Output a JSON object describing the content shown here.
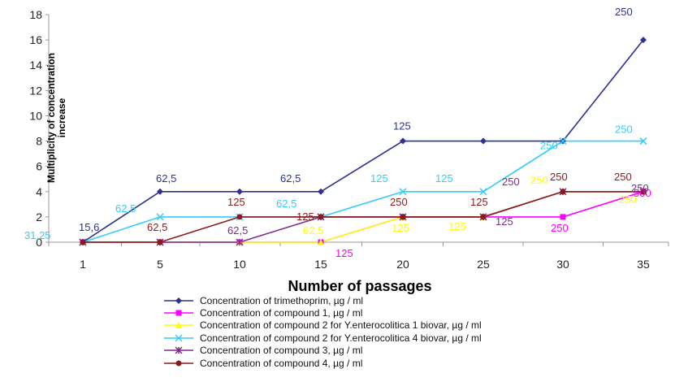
{
  "chart_data": {
    "type": "line",
    "categories": [
      "1",
      "5",
      "10",
      "15",
      "20",
      "25",
      "30",
      "35"
    ],
    "ylim": [
      0,
      18
    ],
    "yticks": [
      "0",
      "2",
      "4",
      "6",
      "8",
      "10",
      "12",
      "14",
      "16",
      "18"
    ],
    "xlabel": "Number of passages",
    "ylabel_line1": "Multiplicity of concentration",
    "ylabel_line2": "increase",
    "grid": false,
    "legend_position": "bottom",
    "series": [
      {
        "name": "Concentration of trimethoprim, µg / ml",
        "color": "#2e3192",
        "marker": "diamond",
        "values": [
          0,
          4,
          4,
          4,
          8,
          8,
          8,
          16
        ],
        "labels": [
          "15,6",
          "62,5",
          "",
          "62,5",
          "125",
          "",
          "",
          "250"
        ]
      },
      {
        "name": "Concentration of compound 1, µg / ml",
        "color": "#ff00ff",
        "marker": "square",
        "values": [
          0,
          0,
          0,
          0,
          2,
          2,
          2,
          4
        ],
        "labels": [
          "",
          "",
          "",
          "125",
          "",
          "",
          "250",
          "500"
        ]
      },
      {
        "name": "Concentration of compound 2 for Y.enterocolitica 1 biovar, µg / ml",
        "color": "#ffff00",
        "marker": "triangle",
        "values": [
          0,
          0,
          0,
          0,
          2,
          2,
          4,
          4
        ],
        "labels": [
          "",
          "",
          "",
          "62,5",
          "125",
          "125",
          "250",
          "250"
        ]
      },
      {
        "name": "Concentration of compound 2 for Y.enterocolitica 4 biovar, µg / ml",
        "color": "#33ccff",
        "marker": "x",
        "values": [
          0,
          2,
          2,
          2,
          4,
          4,
          8,
          8
        ],
        "labels": [
          "31,25",
          "62,5",
          "",
          "62,5",
          "125",
          "125",
          "250",
          "250"
        ]
      },
      {
        "name": "Concentration of compound 3, µg / ml",
        "color": "#7b2c8a",
        "marker": "star",
        "values": [
          0,
          0,
          0,
          2,
          2,
          2,
          4,
          4
        ],
        "labels": [
          "",
          "",
          "62,5",
          "",
          "",
          "125",
          "250",
          "250"
        ]
      },
      {
        "name": "Concentration of compound 4, µg / ml",
        "color": "#8b1a1a",
        "marker": "circle",
        "values": [
          0,
          0,
          2,
          2,
          2,
          2,
          4,
          4
        ],
        "labels": [
          "",
          "62,5",
          "125",
          "125",
          "250",
          "125",
          "250",
          "250"
        ]
      }
    ]
  }
}
